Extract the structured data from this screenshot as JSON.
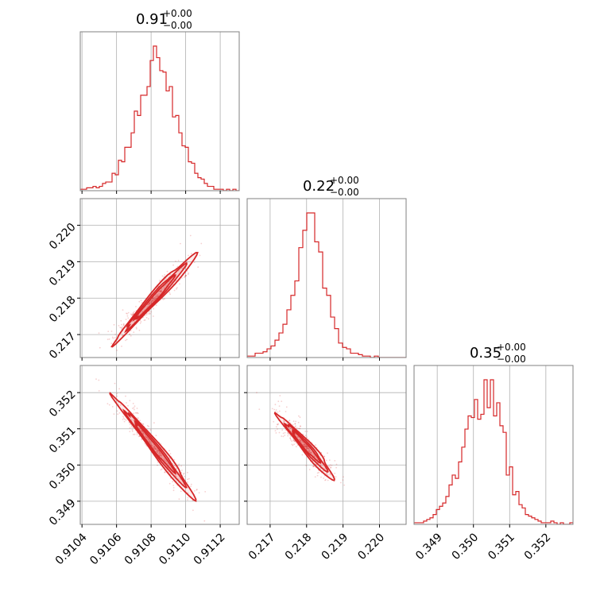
{
  "chart_data": {
    "type": "corner",
    "accent_color": "#d62728",
    "grid": true,
    "params": [
      {
        "title_value": "0.91",
        "title_upper": "+0.00",
        "title_lower": "−0.00",
        "range": [
          0.91039,
          0.91131
        ],
        "ticks": [
          0.9104,
          0.9106,
          0.9108,
          0.911,
          0.9112
        ],
        "ticklabels": [
          "0.9104",
          "0.9106",
          "0.9108",
          "0.9110",
          "0.9112"
        ]
      },
      {
        "title_value": "0.22",
        "title_upper": "+0.00",
        "title_lower": "−0.00",
        "range": [
          0.21637,
          0.22073
        ],
        "ticks": [
          0.217,
          0.218,
          0.219,
          0.22
        ],
        "ticklabels": [
          "0.217",
          "0.218",
          "0.219",
          "0.220"
        ]
      },
      {
        "title_value": "0.35",
        "title_upper": "+0.00",
        "title_lower": "−0.00",
        "range": [
          0.34836,
          0.35275
        ],
        "ticks": [
          0.349,
          0.35,
          0.351,
          0.352
        ],
        "ticklabels": [
          "0.349",
          "0.350",
          "0.351",
          "0.352"
        ]
      }
    ],
    "histograms": [
      {
        "edges_start": 0.91039,
        "edges_end": 0.91131,
        "counts": [
          1,
          1,
          2,
          2,
          3,
          2,
          3,
          5,
          6,
          6,
          12,
          11,
          21,
          20,
          30,
          30,
          40,
          55,
          52,
          66,
          66,
          72,
          90,
          100,
          92,
          83,
          82,
          69,
          72,
          51,
          52,
          40,
          31,
          30,
          20,
          19,
          12,
          9,
          8,
          5,
          3,
          3,
          1,
          1,
          1,
          0,
          1,
          0,
          1,
          0
        ]
      },
      {
        "edges_start": 0.21637,
        "edges_end": 0.22073,
        "counts": [
          1,
          1,
          3,
          3,
          4,
          6,
          8,
          12,
          17,
          23,
          33,
          43,
          53,
          76,
          88,
          100,
          100,
          80,
          73,
          48,
          43,
          28,
          20,
          10,
          7,
          6,
          3,
          3,
          2,
          1,
          1,
          0,
          1,
          0,
          0,
          0,
          0,
          0,
          0,
          0
        ]
      },
      {
        "edges_start": 0.34836,
        "edges_end": 0.35275,
        "counts": [
          1,
          1,
          1,
          2,
          3,
          4,
          6,
          9,
          11,
          13,
          17,
          24,
          30,
          28,
          38,
          47,
          58,
          66,
          65,
          76,
          64,
          67,
          88,
          71,
          88,
          66,
          74,
          60,
          56,
          30,
          35,
          18,
          20,
          12,
          10,
          6,
          5,
          4,
          3,
          2,
          1,
          1,
          1,
          2,
          1,
          0,
          1,
          0,
          0,
          1
        ]
      }
    ],
    "joint": [
      {
        "x": 0,
        "y": 1,
        "center": [
          0.91081,
          0.21795
        ],
        "slope": 5.2,
        "spread_along": 0.00011,
        "spread_across": 9e-05
      },
      {
        "x": 0,
        "y": 2,
        "center": [
          0.91081,
          0.35055
        ],
        "slope": -6.0,
        "spread_along": 0.00011,
        "spread_across": 8e-05
      },
      {
        "x": 1,
        "y": 2,
        "center": [
          0.21795,
          0.35055
        ],
        "slope": -1.15,
        "spread_along": 0.00036,
        "spread_across": 9e-05
      }
    ]
  }
}
